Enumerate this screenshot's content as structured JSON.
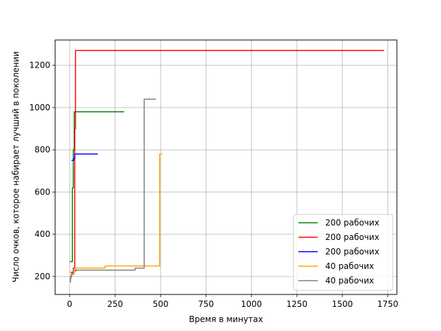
{
  "chart_data": {
    "type": "line",
    "xlabel": "Время в минутах",
    "ylabel": "Число очков, которое набирает лучший в поколении",
    "xlim": [
      -80,
      1800
    ],
    "ylim": [
      115,
      1320
    ],
    "xticks": [
      0,
      250,
      500,
      750,
      1000,
      1250,
      1500,
      1750
    ],
    "yticks": [
      200,
      400,
      600,
      800,
      1000,
      1200
    ],
    "grid": true,
    "legend_position": "lower-right",
    "series": [
      {
        "name": "200 рабочих",
        "color": "#008000",
        "points": [
          [
            2,
            270
          ],
          [
            15,
            270
          ],
          [
            15,
            620
          ],
          [
            20,
            620
          ],
          [
            20,
            800
          ],
          [
            25,
            800
          ],
          [
            25,
            980
          ],
          [
            300,
            980
          ]
        ]
      },
      {
        "name": "200 рабочих",
        "color": "#ff0000",
        "points": [
          [
            5,
            220
          ],
          [
            20,
            220
          ],
          [
            20,
            240
          ],
          [
            28,
            240
          ],
          [
            28,
            900
          ],
          [
            32,
            900
          ],
          [
            32,
            1270
          ],
          [
            1730,
            1270
          ]
        ]
      },
      {
        "name": "200 рабочих",
        "color": "#0000ff",
        "points": [
          [
            10,
            750
          ],
          [
            22,
            750
          ],
          [
            22,
            760
          ],
          [
            28,
            760
          ],
          [
            28,
            780
          ],
          [
            155,
            780
          ]
        ]
      },
      {
        "name": "40 рабочих",
        "color": "#ffa500",
        "points": [
          [
            2,
            190
          ],
          [
            8,
            190
          ],
          [
            8,
            210
          ],
          [
            25,
            210
          ],
          [
            25,
            225
          ],
          [
            35,
            225
          ],
          [
            35,
            240
          ],
          [
            195,
            240
          ],
          [
            195,
            250
          ],
          [
            495,
            250
          ],
          [
            495,
            780
          ],
          [
            510,
            780
          ]
        ]
      },
      {
        "name": "40 рабочих",
        "color": "#808080",
        "points": [
          [
            0,
            175
          ],
          [
            5,
            175
          ],
          [
            5,
            200
          ],
          [
            12,
            200
          ],
          [
            12,
            215
          ],
          [
            20,
            215
          ],
          [
            20,
            230
          ],
          [
            360,
            230
          ],
          [
            360,
            240
          ],
          [
            410,
            240
          ],
          [
            410,
            1040
          ],
          [
            475,
            1040
          ]
        ]
      }
    ]
  }
}
